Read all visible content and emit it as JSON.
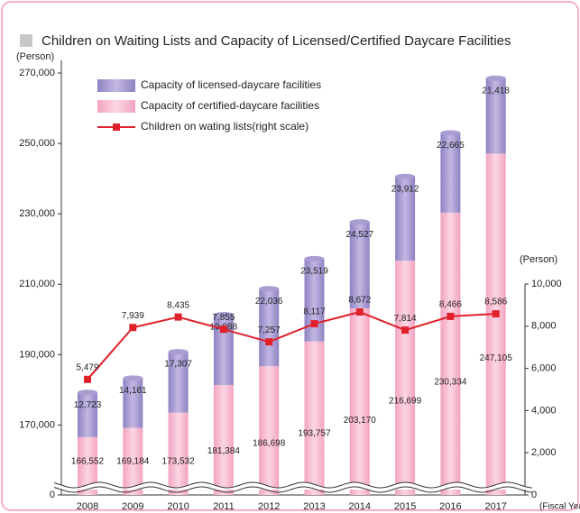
{
  "chart_data": {
    "type": "bar",
    "title": "Children on Waiting Lists and Capacity of Licensed/Certified Daycare Facilities",
    "y_label": "(Person)",
    "y2_label": "(Person)",
    "x_label": "(Fiscal Year)",
    "categories": [
      "2008",
      "2009",
      "2010",
      "2011",
      "2012",
      "2013",
      "2014",
      "2015",
      "2016",
      "2017"
    ],
    "series": [
      {
        "name": "Capacity of licensed-daycare facilities",
        "color": "#a99dd2",
        "values": [
          12723,
          14161,
          17307,
          19988,
          22036,
          23519,
          24527,
          23912,
          22665,
          21418
        ],
        "value_labels": [
          "12,723",
          "14,161",
          "17,307",
          "19,988",
          "22,036",
          "23,519",
          "24,527",
          "23,912",
          "22,665",
          "21,418"
        ]
      },
      {
        "name": "Capacity of certified-daycare facilities",
        "color": "#f8bcd2",
        "values": [
          166552,
          169184,
          173532,
          181384,
          186698,
          193757,
          203170,
          216699,
          230334,
          247105
        ],
        "value_labels": [
          "166,552",
          "169,184",
          "173,532",
          "181,384",
          "186,698",
          "193,757",
          "203,170",
          "216,699",
          "230,334",
          "247,105"
        ]
      },
      {
        "name": "Children on wating lists(right scale)",
        "type": "line",
        "axis": "y2",
        "color": "#e0202a",
        "values": [
          5479,
          7939,
          8435,
          7855,
          7257,
          8117,
          8672,
          7814,
          8466,
          8586
        ],
        "value_labels": [
          "5,479",
          "7,939",
          "8,435",
          "7,855",
          "7,257",
          "8,117",
          "8,672",
          "7,814",
          "8,466",
          "8,586"
        ]
      }
    ],
    "ylim": [
      0,
      270000
    ],
    "ybreak": 155000,
    "yticks": [
      0,
      {
        "value": 170000,
        "label": "170,000"
      },
      {
        "value": 190000,
        "label": "190,000"
      },
      {
        "value": 210000,
        "label": "210,000"
      },
      {
        "value": 230000,
        "label": "230,000"
      },
      {
        "value": 250000,
        "label": "250,000"
      },
      {
        "value": 270000,
        "label": "270,000"
      }
    ],
    "y2lim": [
      0,
      10000
    ],
    "y2ticks": [
      0,
      {
        "value": 2000,
        "label": "2,000"
      },
      {
        "value": 4000,
        "label": "4,000"
      },
      {
        "value": 6000,
        "label": "6,000"
      },
      {
        "value": 8000,
        "label": "8,000"
      },
      {
        "value": 10000,
        "label": "10,000"
      }
    ],
    "grid": false,
    "legend": "top-left"
  }
}
